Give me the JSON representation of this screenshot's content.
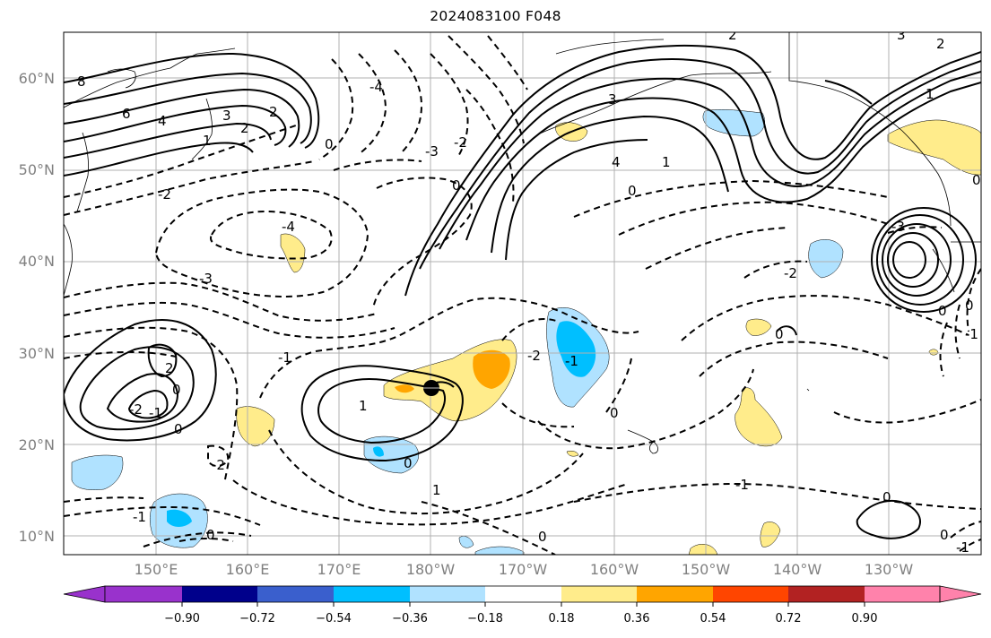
{
  "title": "2024083100 F048",
  "lat_labels": [
    "60°N",
    "50°N",
    "40°N",
    "30°N",
    "20°N",
    "10°N"
  ],
  "lon_labels": [
    "150°E",
    "160°E",
    "170°E",
    "180°W",
    "170°W",
    "160°W",
    "150°W",
    "140°W",
    "130°W"
  ],
  "colorbar": {
    "tick_labels": [
      "−0.90",
      "−0.72",
      "−0.54",
      "−0.36",
      "−0.18",
      "0.18",
      "0.36",
      "0.54",
      "0.72",
      "0.90"
    ],
    "colors": [
      "#9932cc",
      "#00008b",
      "#3a5fcd",
      "#00bfff",
      "#b0e2ff",
      "#ffffff",
      "#ffec8b",
      "#ffa500",
      "#ff4500",
      "#b22222",
      "#ff82ab"
    ]
  },
  "contour_labels": [
    "8",
    "6",
    "4",
    "3",
    "2",
    "2",
    "1",
    "0",
    "-4",
    "-3",
    "-2",
    "-4",
    "-3",
    "-2",
    "-1",
    "0",
    "3",
    "4",
    "1",
    "0",
    "-2",
    "-3",
    "2",
    "3",
    "1",
    "0",
    "2",
    "-2",
    "2",
    "-2",
    "-1",
    "0",
    "1",
    "0",
    "-2",
    "-1",
    "-1",
    "0",
    "0",
    "-1",
    "-1",
    "0",
    "0",
    "0",
    "-1",
    "1",
    "-2",
    "2"
  ],
  "marker": "storm-center"
}
